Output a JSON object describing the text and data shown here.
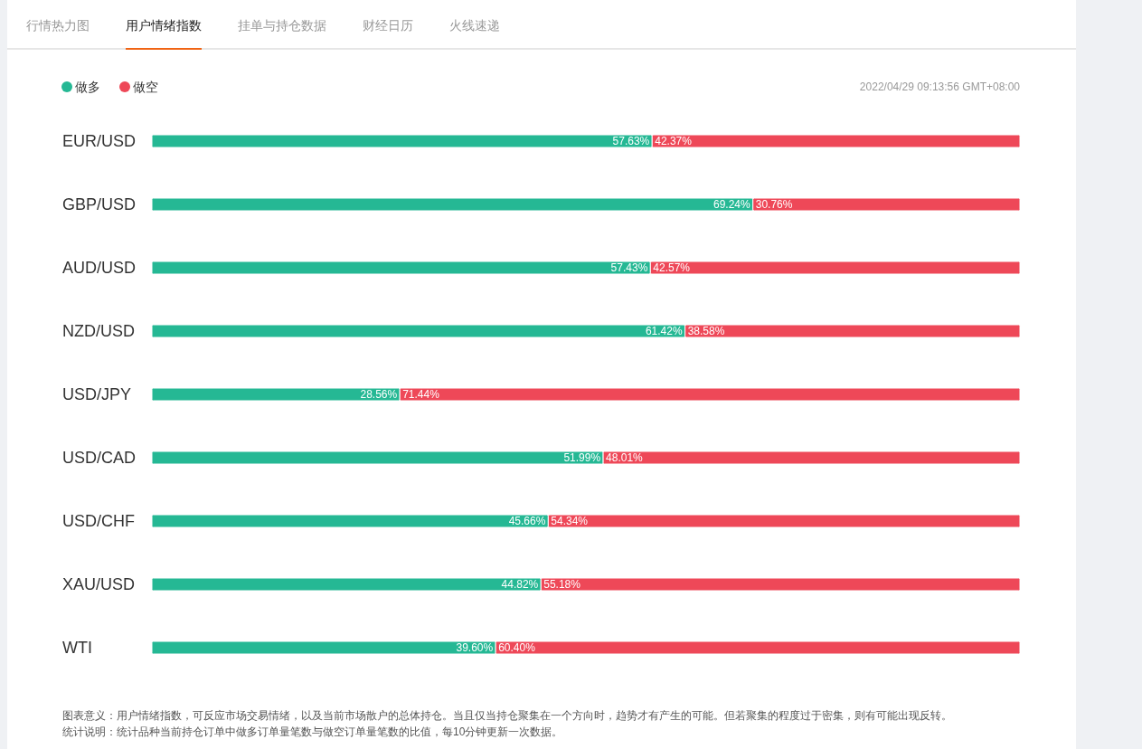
{
  "chart_data": {
    "type": "bar",
    "orientation": "horizontal",
    "stacked": true,
    "title": "用户情绪指数",
    "subtitle": "2022/04/29 09:13:56 GMT+08:00",
    "categories": [
      "EUR/USD",
      "GBP/USD",
      "AUD/USD",
      "NZD/USD",
      "USD/JPY",
      "USD/CAD",
      "USD/CHF",
      "XAU/USD",
      "WTI"
    ],
    "series": [
      {
        "name": "做多",
        "color": "#25b894",
        "values": [
          57.63,
          69.24,
          57.43,
          61.42,
          28.56,
          51.99,
          45.66,
          44.82,
          39.6
        ],
        "value_labels": [
          "57.63%",
          "69.24%",
          "57.43%",
          "61.42%",
          "28.56%",
          "51.99%",
          "45.66%",
          "44.82%",
          "39.60%"
        ]
      },
      {
        "name": "做空",
        "color": "#ee4858",
        "values": [
          42.37,
          30.76,
          42.57,
          38.58,
          71.44,
          48.01,
          54.34,
          55.18,
          60.4
        ],
        "value_labels": [
          "42.37%",
          "30.76%",
          "42.57%",
          "38.58%",
          "71.44%",
          "48.01%",
          "54.34%",
          "55.18%",
          "60.40%"
        ]
      }
    ],
    "xlim": [
      0,
      100
    ],
    "tick_labels": "y",
    "legend": "top left",
    "annotations": [
      "行情热力图",
      "挂单与持仓数据",
      "财经日历",
      "火线速递",
      "图表意义：用户情绪指数，可反应市场交易情绪，以及当前市场散户的总体持仓。当且仅当持仓聚集在一个方向时，趋势才有产生的可能。但若聚集的程度过于密集，则有可能出现反转。",
      "统计说明：统计品种当前持仓订单中做多订单量笔数与做空订单量笔数的比值，每10分钟更新一次数据。"
    ]
  }
}
